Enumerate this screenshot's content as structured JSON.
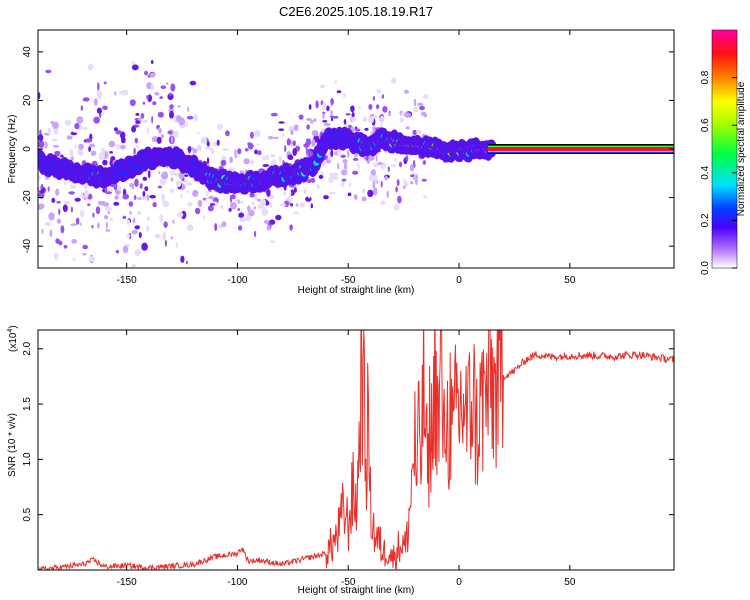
{
  "figure_title": "C2E6.2025.105.18.19.R17",
  "colors": {
    "axis": "#000000",
    "snr_line": "#e8302a",
    "band_outer": "#0000cc",
    "band_mid": "#00e0e0",
    "band_core": "#ff1010"
  },
  "chart_data": [
    {
      "type": "heatmap",
      "title": "",
      "xlabel": "Height of straight line (km)",
      "ylabel": "Frequency (Hz)",
      "xlim": [
        -190,
        97
      ],
      "ylim": [
        -49,
        49
      ],
      "x_ticks": [
        -150,
        -100,
        -50,
        0,
        50
      ],
      "y_ticks": [
        -40,
        -20,
        0,
        20,
        40
      ],
      "grid": false,
      "colorbar": {
        "label": "Normalized spectral amplitude",
        "range": [
          0,
          1
        ],
        "ticks": [
          "0.0",
          "0.2",
          "0.4",
          "0.6",
          "0.8"
        ],
        "colormap": [
          "#ffffff",
          "#7f00ff",
          "#0000ff",
          "#00ffff",
          "#00ff00",
          "#ffff00",
          "#ff8000",
          "#ff0000",
          "#ff00ff"
        ]
      },
      "ridge": {
        "x": [
          -190,
          -180,
          -170,
          -160,
          -150,
          -140,
          -130,
          -120,
          -110,
          -100,
          -90,
          -80,
          -70,
          -65,
          -60,
          -50,
          -45,
          -40,
          -35,
          -30,
          -25,
          -20,
          -10,
          0,
          10,
          15,
          50,
          97
        ],
        "y": [
          -5,
          -8,
          -10,
          -12,
          -8,
          -4,
          -3,
          -7,
          -13,
          -14,
          -13,
          -11,
          -9,
          -6,
          5,
          4,
          2,
          1,
          4,
          3,
          2,
          1,
          0,
          -1,
          0,
          0,
          0,
          0
        ],
        "peak_amplitude": [
          0.2,
          0.25,
          0.3,
          0.45,
          0.2,
          0.2,
          0.2,
          0.25,
          0.5,
          0.8,
          0.5,
          0.45,
          0.55,
          0.45,
          0.3,
          0.35,
          0.35,
          0.4,
          0.5,
          0.7,
          0.8,
          0.8,
          0.9,
          0.9,
          0.9,
          1.0,
          1.0,
          1.0
        ]
      }
    },
    {
      "type": "line",
      "title": "",
      "xlabel": "Height of straight line (km)",
      "ylabel": "SNR (10 * v/v)",
      "y_scale_label": "(x10",
      "y_scale_exponent": "4",
      "y_scale_close": ")",
      "xlim": [
        -190,
        97
      ],
      "ylim": [
        0,
        21700
      ],
      "x_ticks": [
        -150,
        -100,
        -50,
        0,
        50
      ],
      "y_ticks": [
        5000,
        10000,
        15000,
        20000
      ],
      "y_tick_labels": [
        "0.5",
        "1.0",
        "1.5",
        "2.0"
      ],
      "grid": false,
      "series": [
        {
          "x": [
            -190,
            -170,
            -165,
            -160,
            -150,
            -140,
            -120,
            -110,
            -100,
            -98,
            -95,
            -90,
            -80,
            -70,
            -60,
            -55,
            -52,
            -50,
            -48,
            -46,
            -45,
            -44,
            -43,
            -42,
            -41,
            -40,
            -38,
            -36,
            -34,
            -32,
            -30,
            -28,
            -26,
            -24,
            -22,
            -21,
            -20,
            -19,
            -18,
            -17,
            -16,
            -15,
            -14,
            -13,
            -12,
            -11,
            -10,
            -9,
            -8,
            -7,
            -6,
            -5,
            -4,
            -3,
            -2,
            -1,
            0,
            2,
            4,
            6,
            8,
            10,
            12,
            14,
            16,
            18,
            20,
            25,
            30,
            35,
            40,
            45,
            50,
            60,
            70,
            80,
            90,
            97
          ],
          "y": [
            0,
            500,
            900,
            300,
            400,
            200,
            500,
            1200,
            1500,
            2000,
            800,
            900,
            500,
            1000,
            1500,
            3000,
            5500,
            4000,
            7000,
            6000,
            12000,
            20000,
            15000,
            9000,
            14000,
            6000,
            3000,
            2500,
            1500,
            2000,
            1000,
            1800,
            2500,
            2000,
            6000,
            9000,
            12000,
            7000,
            14000,
            10000,
            17000,
            12000,
            8000,
            15000,
            10000,
            20000,
            15000,
            12000,
            21700,
            10000,
            16000,
            12000,
            15000,
            11000,
            13000,
            15000,
            14000,
            15500,
            13000,
            16500,
            12500,
            15000,
            15500,
            17000,
            16000,
            17000,
            17500,
            18000,
            19000,
            19500,
            19300,
            19300,
            19400,
            19400,
            19300,
            19500,
            19200,
            19000
          ]
        }
      ]
    }
  ]
}
